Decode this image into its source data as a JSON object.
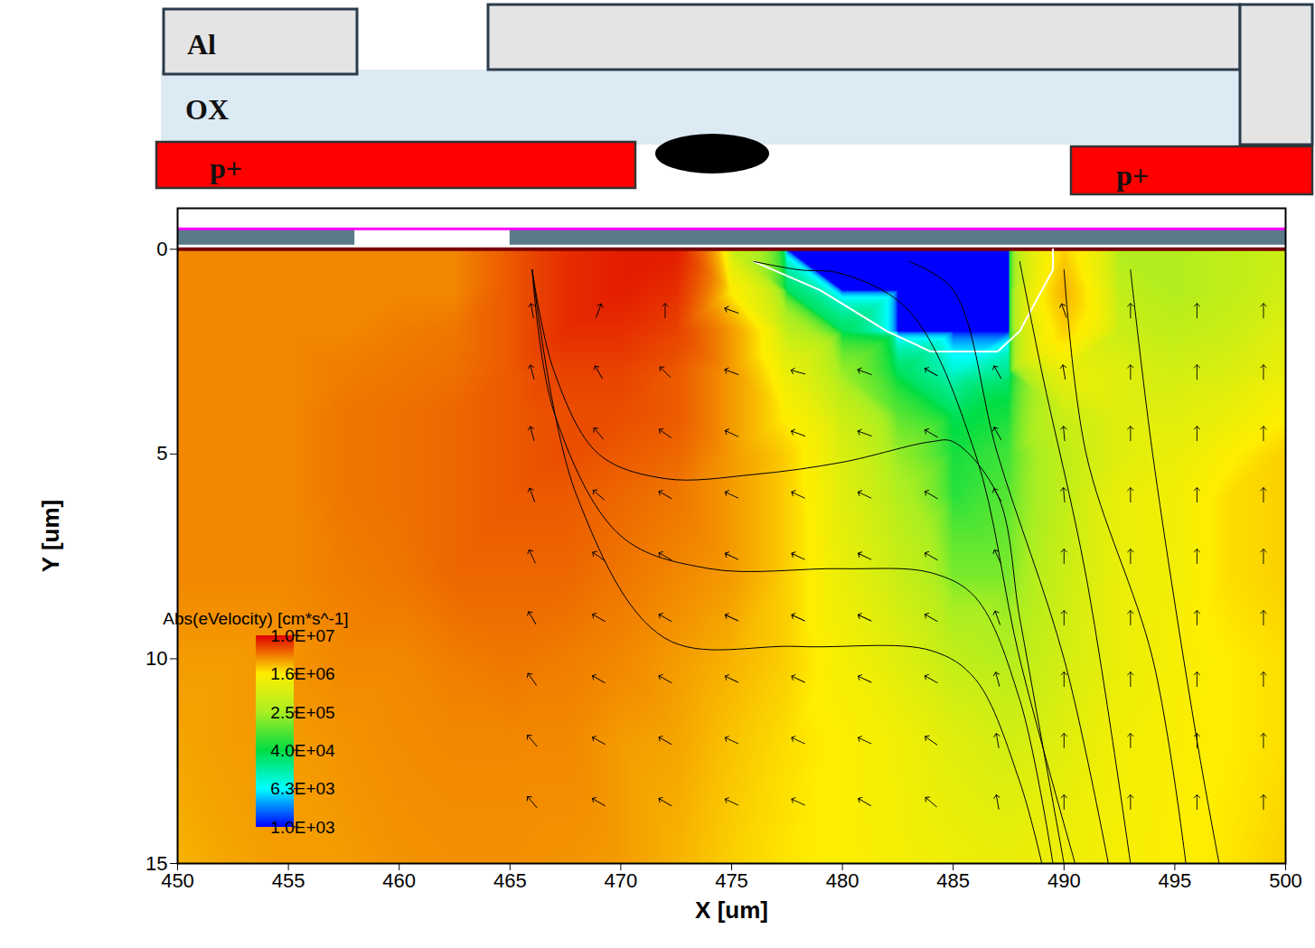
{
  "chart_data": {
    "type": "heatmap",
    "x_label": "X [um]",
    "y_label": "Y [um]",
    "xlim": [
      450,
      500
    ],
    "ylim": [
      15,
      -1
    ],
    "xticks": [
      450,
      455,
      460,
      465,
      470,
      475,
      480,
      485,
      490,
      495,
      500
    ],
    "yticks": [
      0,
      5,
      10,
      15
    ],
    "grid": false,
    "annotations": [
      "Al",
      "OX",
      "p+",
      "p+"
    ],
    "colorbar": {
      "title": "Abs(eVelocity) [cm*s^-1]",
      "log": true,
      "lim": [
        1000,
        10000000
      ],
      "ticks": [
        {
          "value": 10000000,
          "label": "1.0E+07"
        },
        {
          "value": 1600000,
          "label": "1.6E+06"
        },
        {
          "value": 250000,
          "label": "2.5E+05"
        },
        {
          "value": 40000,
          "label": "4.0E+04"
        },
        {
          "value": 6300,
          "label": "6.3E+03"
        },
        {
          "value": 1000,
          "label": "1.0E+03"
        }
      ]
    },
    "cells": {
      "x": [
        450,
        452.5,
        455,
        457.5,
        460,
        462.5,
        465,
        467.5,
        470,
        472.5,
        475,
        477.5,
        480,
        482.5,
        485,
        487.5,
        490,
        492.5,
        495,
        497.5,
        500
      ],
      "y": [
        0,
        1,
        2,
        3,
        4,
        5,
        6,
        8,
        10,
        12,
        15
      ],
      "values": [
        [
          3500000,
          3500000,
          3500000,
          3500000,
          3500000,
          3500000,
          5000000,
          7000000,
          8000000,
          8000000,
          500000,
          1000,
          1000,
          1000,
          1000,
          1000,
          2000000,
          300000,
          300000,
          400000,
          500000
        ],
        [
          3500000,
          3500000,
          3500000,
          3500000,
          3500000,
          3500000,
          5000000,
          7000000,
          8000000,
          7000000,
          1500000,
          30000,
          1000,
          1000,
          1000,
          1000,
          2500000,
          400000,
          300000,
          400000,
          600000
        ],
        [
          3500000,
          3500000,
          3500000,
          3500000,
          3800000,
          4000000,
          5000000,
          7000000,
          7000000,
          6000000,
          3000000,
          400000,
          30000,
          1000,
          1000,
          1000,
          2000000,
          500000,
          400000,
          500000,
          800000
        ],
        [
          3500000,
          3500000,
          3500000,
          3800000,
          4000000,
          4200000,
          5000000,
          6000000,
          6000000,
          5000000,
          3000000,
          1000000,
          200000,
          30000,
          10000,
          20000,
          1000000,
          800000,
          600000,
          700000,
          1000000
        ],
        [
          3500000,
          3500000,
          3500000,
          4000000,
          4200000,
          4500000,
          5000000,
          5500000,
          5500000,
          5000000,
          3000000,
          1500000,
          500000,
          100000,
          30000,
          50000,
          500000,
          800000,
          800000,
          1000000,
          1500000
        ],
        [
          3500000,
          3500000,
          3500000,
          4000000,
          4200000,
          4500000,
          5000000,
          5500000,
          5000000,
          4500000,
          3000000,
          2000000,
          700000,
          200000,
          50000,
          80000,
          400000,
          800000,
          1000000,
          1500000,
          2000000
        ],
        [
          3500000,
          3500000,
          3500000,
          4000000,
          4200000,
          4500000,
          5000000,
          5000000,
          4500000,
          4000000,
          3000000,
          2000000,
          800000,
          300000,
          60000,
          100000,
          400000,
          1000000,
          1200000,
          1800000,
          2000000
        ],
        [
          3500000,
          3500000,
          3500000,
          3800000,
          4000000,
          4500000,
          4500000,
          4500000,
          4000000,
          3500000,
          3000000,
          2000000,
          1000000,
          500000,
          150000,
          150000,
          500000,
          1000000,
          1200000,
          1800000,
          2000000
        ],
        [
          3000000,
          3000000,
          3200000,
          3500000,
          3500000,
          3800000,
          4000000,
          3800000,
          3500000,
          3000000,
          2500000,
          2000000,
          1300000,
          800000,
          400000,
          300000,
          600000,
          1000000,
          1300000,
          1600000,
          1800000
        ],
        [
          2800000,
          3000000,
          3000000,
          3200000,
          3400000,
          3500000,
          3500000,
          3500000,
          3000000,
          2800000,
          2200000,
          1800000,
          1500000,
          1200000,
          800000,
          600000,
          800000,
          1200000,
          1400000,
          1600000,
          1800000
        ],
        [
          2500000,
          2800000,
          3000000,
          3000000,
          3200000,
          3300000,
          3300000,
          3200000,
          3000000,
          2500000,
          2000000,
          1700000,
          1500000,
          1300000,
          1100000,
          1000000,
          1100000,
          1300000,
          1500000,
          1700000,
          2000000
        ]
      ]
    },
    "vectors": {
      "x": [
        466,
        469,
        472,
        475,
        478,
        481,
        484,
        487,
        490,
        493,
        496,
        499
      ],
      "y": [
        1.5,
        3,
        4.5,
        6,
        7.5,
        9,
        10.5,
        12,
        13.5
      ],
      "angle": [
        [
          350,
          20,
          0,
          290,
          null,
          null,
          null,
          null,
          340,
          0,
          0,
          0
        ],
        [
          345,
          330,
          315,
          290,
          285,
          290,
          300,
          330,
          350,
          0,
          0,
          0
        ],
        [
          345,
          320,
          305,
          295,
          290,
          290,
          300,
          330,
          355,
          0,
          0,
          0
        ],
        [
          340,
          310,
          300,
          295,
          295,
          295,
          300,
          330,
          355,
          0,
          0,
          0
        ],
        [
          335,
          305,
          300,
          295,
          295,
          295,
          300,
          335,
          0,
          0,
          0,
          0
        ],
        [
          330,
          300,
          300,
          295,
          295,
          295,
          300,
          340,
          0,
          0,
          0,
          0
        ],
        [
          325,
          300,
          300,
          295,
          295,
          295,
          300,
          345,
          0,
          0,
          0,
          0
        ],
        [
          320,
          300,
          300,
          295,
          295,
          295,
          305,
          350,
          0,
          0,
          0,
          0
        ],
        [
          320,
          300,
          300,
          295,
          295,
          300,
          310,
          350,
          0,
          0,
          0,
          0
        ]
      ]
    },
    "current_lines": [
      {
        "x": [
          466,
          467,
          469,
          472,
          476,
          480,
          484,
          485,
          487,
          488,
          489,
          490
        ],
        "y": [
          0.5,
          3,
          5,
          5.6,
          5.5,
          5.2,
          4.7,
          4.7,
          6,
          9,
          12,
          15
        ]
      },
      {
        "x": [
          466,
          467,
          470,
          474,
          480,
          484,
          486,
          488,
          489.5
        ],
        "y": [
          0.5,
          4,
          7,
          7.8,
          7.8,
          7.9,
          8.5,
          11,
          15
        ]
      },
      {
        "x": [
          466,
          468,
          472,
          478,
          484,
          486,
          488,
          489
        ],
        "y": [
          0.5,
          6,
          9.5,
          9.7,
          9.8,
          10.5,
          13,
          15
        ]
      },
      {
        "x": [
          476,
          478,
          480,
          483,
          486,
          488,
          490.5
        ],
        "y": [
          0.3,
          0.5,
          0.6,
          1.5,
          5,
          10,
          15
        ]
      },
      {
        "x": [
          483,
          485,
          487,
          490,
          492
        ],
        "y": [
          0.3,
          1,
          5,
          10,
          15
        ]
      },
      {
        "x": [
          488,
          489,
          491,
          493
        ],
        "y": [
          0.3,
          3,
          8,
          15
        ]
      },
      {
        "x": [
          490,
          491,
          494,
          495.5
        ],
        "y": [
          0.5,
          5,
          10,
          15
        ]
      },
      {
        "x": [
          493,
          494,
          496,
          497
        ],
        "y": [
          0.5,
          5,
          12,
          15
        ]
      }
    ],
    "junction": {
      "x": [
        476,
        479,
        482,
        484,
        487,
        488,
        489.5,
        489.5
      ],
      "y": [
        0.3,
        1,
        2,
        2.5,
        2.5,
        2,
        0.5,
        0
      ]
    },
    "surface_layers": {
      "x": [
        [
          450,
          458
        ],
        [
          465,
          500
        ]
      ],
      "y": [
        -0.5,
        -0.1
      ]
    }
  }
}
